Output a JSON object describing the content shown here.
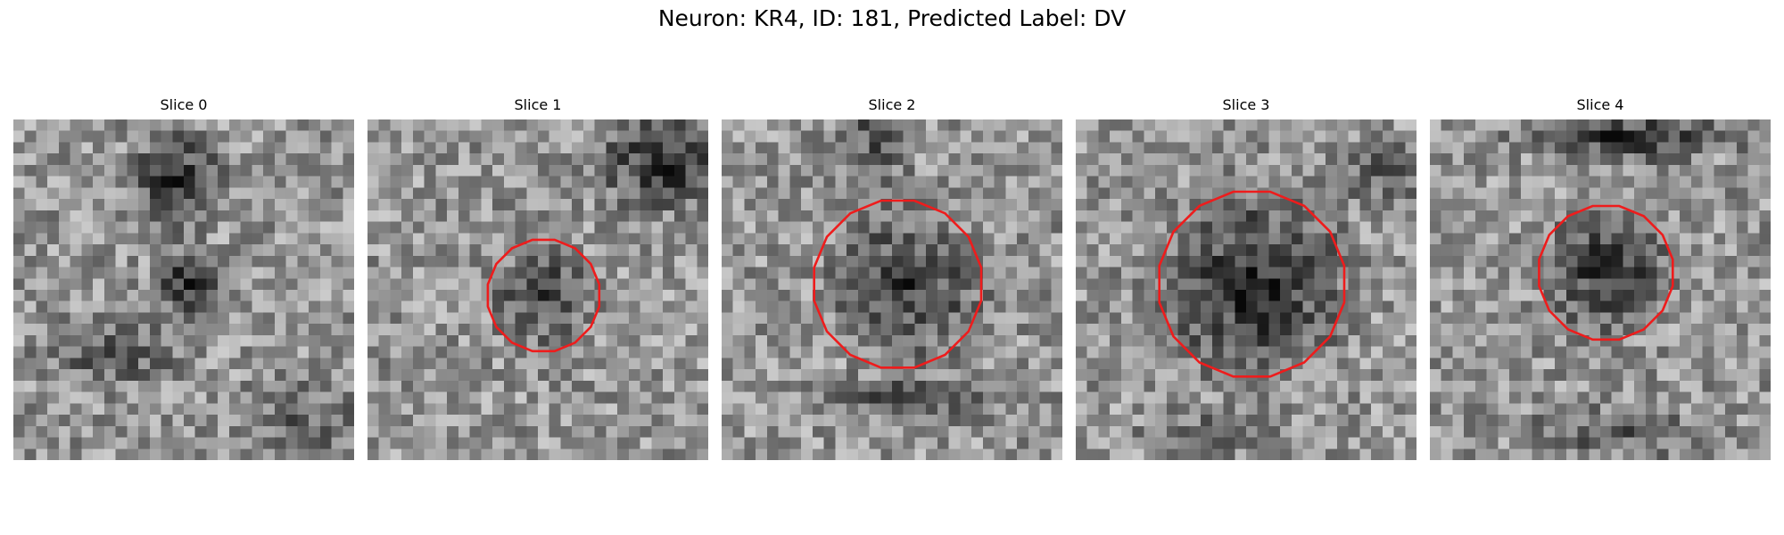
{
  "figure": {
    "title": "Neuron: KR4, ID: 181, Predicted Label: DV"
  },
  "contour_color": "#ee1c1c",
  "grid_size": 30,
  "slices": [
    {
      "label": "Slice 0",
      "contour": null,
      "dark_regions": [
        [
          14,
          5,
          4,
          4,
          0.6
        ],
        [
          15,
          14,
          3,
          3,
          0.7
        ],
        [
          8,
          20,
          6,
          3,
          0.35
        ],
        [
          25,
          26,
          5,
          4,
          0.3
        ]
      ]
    },
    {
      "label": "Slice 1",
      "contour": {
        "cx": 15,
        "cy": 15,
        "r": 5
      },
      "dark_regions": [
        [
          15,
          15,
          4,
          4,
          0.5
        ],
        [
          26,
          3,
          6,
          4,
          0.65
        ]
      ]
    },
    {
      "label": "Slice 2",
      "contour": {
        "cx": 15,
        "cy": 14,
        "r": 7.5
      },
      "dark_regions": [
        [
          16,
          14,
          6,
          6,
          0.55
        ],
        [
          13,
          1,
          3,
          6,
          0.35
        ],
        [
          17,
          24,
          8,
          2,
          0.45
        ]
      ]
    },
    {
      "label": "Slice 3",
      "contour": {
        "cx": 15,
        "cy": 14,
        "r": 8.3
      },
      "dark_regions": [
        [
          15,
          14,
          7.5,
          7.5,
          0.65
        ],
        [
          27,
          4,
          4,
          3,
          0.35
        ],
        [
          12,
          27,
          6,
          2,
          0.3
        ]
      ]
    },
    {
      "label": "Slice 4",
      "contour": {
        "cx": 15,
        "cy": 13,
        "r": 6
      },
      "dark_regions": [
        [
          15,
          13,
          5,
          5,
          0.6
        ],
        [
          17,
          1,
          9,
          2,
          0.6
        ],
        [
          16,
          27,
          8,
          2,
          0.4
        ]
      ]
    }
  ]
}
